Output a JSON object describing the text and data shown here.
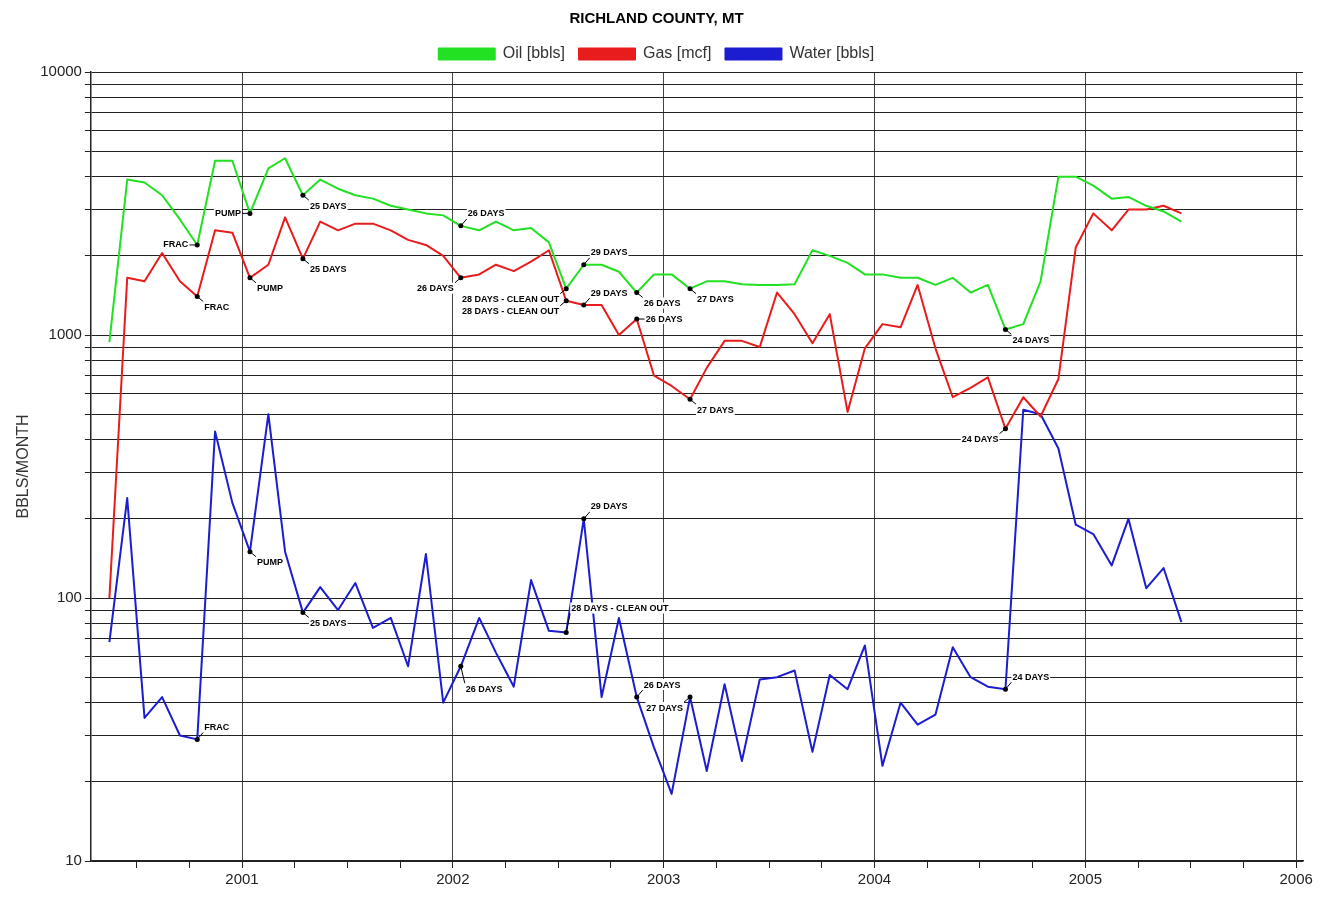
{
  "chart_data": {
    "type": "line",
    "title": "RICHLAND COUNTY, MT",
    "ylabel": "BBLS/MONTH",
    "x": [
      "2000-05-15",
      "2000-06-15",
      "2000-07-15",
      "2000-08-15",
      "2000-09-15",
      "2000-10-15",
      "2000-11-15",
      "2000-12-15",
      "2001-01-15",
      "2001-02-15",
      "2001-03-15",
      "2001-04-15",
      "2001-05-15",
      "2001-06-15",
      "2001-07-15",
      "2001-08-15",
      "2001-09-15",
      "2001-10-15",
      "2001-11-15",
      "2001-12-15",
      "2002-01-15",
      "2002-02-15",
      "2002-03-15",
      "2002-04-15",
      "2002-05-15",
      "2002-06-15",
      "2002-07-15",
      "2002-08-15",
      "2002-09-15",
      "2002-10-15",
      "2002-11-15",
      "2002-12-15",
      "2003-01-15",
      "2003-02-15",
      "2003-03-15",
      "2003-04-15",
      "2003-05-15",
      "2003-06-15",
      "2003-07-15",
      "2003-08-15",
      "2003-09-15",
      "2003-10-15",
      "2003-11-15",
      "2003-12-15",
      "2004-01-15",
      "2004-02-15",
      "2004-03-15",
      "2004-04-15",
      "2004-05-15",
      "2004-06-15",
      "2004-07-15",
      "2004-08-15",
      "2004-09-15",
      "2004-10-15",
      "2004-11-15",
      "2004-12-15",
      "2005-01-15",
      "2005-02-15",
      "2005-03-15",
      "2005-04-15",
      "2005-05-15",
      "2005-06-15"
    ],
    "series": [
      {
        "name": "Oil [bbls]",
        "color": "#22e022",
        "values": [
          940,
          3900,
          3800,
          3400,
          2750,
          2200,
          4600,
          4600,
          2900,
          4300,
          4700,
          3400,
          3900,
          3600,
          3400,
          3300,
          3100,
          3000,
          2900,
          2850,
          2600,
          2500,
          2700,
          2500,
          2550,
          2250,
          1500,
          1850,
          1850,
          1740,
          1450,
          1700,
          1700,
          1500,
          1600,
          1600,
          1560,
          1550,
          1550,
          1560,
          2100,
          2000,
          1880,
          1700,
          1700,
          1650,
          1650,
          1550,
          1650,
          1450,
          1550,
          1050,
          1100,
          1600,
          4000,
          4000,
          3700,
          3300,
          3350,
          3100,
          2950,
          2700
        ]
      },
      {
        "name": "Gas [mcf]",
        "color": "#e81c1c",
        "values": [
          100,
          1650,
          1600,
          2050,
          1600,
          1400,
          2500,
          2450,
          1650,
          1850,
          2800,
          1950,
          2700,
          2500,
          2650,
          2650,
          2500,
          2300,
          2200,
          2000,
          1650,
          1700,
          1850,
          1750,
          1900,
          2100,
          1350,
          1300,
          1300,
          1000,
          1150,
          700,
          640,
          570,
          750,
          950,
          950,
          900,
          1450,
          1200,
          930,
          1200,
          510,
          890,
          1100,
          1070,
          1550,
          890,
          580,
          630,
          690,
          440,
          580,
          490,
          680,
          2150,
          2900,
          2500,
          3000,
          3000,
          3100,
          2900
        ]
      },
      {
        "name": "Water [bbls]",
        "color": "#1c1cd0",
        "values": [
          68,
          240,
          35,
          42,
          30,
          29,
          430,
          230,
          150,
          500,
          150,
          88,
          110,
          90,
          114,
          77,
          84,
          55,
          147,
          40,
          55,
          84,
          62,
          46,
          117,
          75,
          74,
          200,
          42,
          84,
          42,
          27,
          18,
          42,
          22,
          47,
          24,
          49,
          50,
          53,
          26,
          51,
          45,
          66,
          23,
          40,
          33,
          36,
          65,
          50,
          46,
          45,
          520,
          500,
          370,
          190,
          175,
          133,
          200,
          109,
          130,
          81
        ]
      }
    ],
    "log": "y",
    "ylim": [
      10,
      10000
    ],
    "yticks": [
      10,
      {
        "value": 20,
        "label": null
      },
      {
        "value": 30,
        "label": null
      },
      {
        "value": 40,
        "label": null
      },
      {
        "value": 50,
        "label": null
      },
      {
        "value": 60,
        "label": null
      },
      {
        "value": 70,
        "label": null
      },
      {
        "value": 80,
        "label": null
      },
      {
        "value": 90,
        "label": null
      },
      100,
      {
        "value": 200,
        "label": null
      },
      {
        "value": 300,
        "label": null
      },
      {
        "value": 400,
        "label": null
      },
      {
        "value": 500,
        "label": null
      },
      {
        "value": 600,
        "label": null
      },
      {
        "value": 700,
        "label": null
      },
      {
        "value": 800,
        "label": null
      },
      {
        "value": 900,
        "label": null
      },
      1000,
      {
        "value": 2000,
        "label": null
      },
      {
        "value": 3000,
        "label": null
      },
      {
        "value": 4000,
        "label": null
      },
      {
        "value": 5000,
        "label": null
      },
      {
        "value": 6000,
        "label": null
      },
      {
        "value": 7000,
        "label": null
      },
      {
        "value": 8000,
        "label": null
      },
      {
        "value": 9000,
        "label": null
      },
      10000
    ],
    "xlim": [
      "2000-04-13",
      "2006-01-13"
    ],
    "xticks": [
      {
        "value": "2000-07",
        "label": null
      },
      {
        "value": "2000-10",
        "label": null
      },
      {
        "value": "2001",
        "label": "2001"
      },
      {
        "value": "2001-04",
        "label": null
      },
      {
        "value": "2001-07",
        "label": null
      },
      {
        "value": "2001-10",
        "label": null
      },
      {
        "value": "2002",
        "label": "2002"
      },
      {
        "value": "2002-04",
        "label": null
      },
      {
        "value": "2002-07",
        "label": null
      },
      {
        "value": "2002-10",
        "label": null
      },
      {
        "value": "2003",
        "label": "2003"
      },
      {
        "value": "2003-04",
        "label": null
      },
      {
        "value": "2003-07",
        "label": null
      },
      {
        "value": "2003-10",
        "label": null
      },
      {
        "value": "2004",
        "label": "2004"
      },
      {
        "value": "2004-04",
        "label": null
      },
      {
        "value": "2004-07",
        "label": null
      },
      {
        "value": "2004-10",
        "label": null
      },
      {
        "value": "2005",
        "label": "2005"
      },
      {
        "value": "2005-04",
        "label": null
      },
      {
        "value": "2005-07",
        "label": null
      },
      {
        "value": "2005-10",
        "label": null
      },
      {
        "value": "2006",
        "label": "2006"
      }
    ],
    "grid": true,
    "legend": "top",
    "annotations": [
      {
        "text": "FRAC",
        "x": "2000-10-15",
        "y": 2200
      },
      {
        "text": "PUMP",
        "x": "2001-01-15",
        "y": 2900
      },
      {
        "text": "25 DAYS",
        "x": "2001-04-15",
        "y": 3400
      },
      {
        "text": "26 DAYS",
        "x": "2002-01-15",
        "y": 2600
      },
      {
        "text": "28 DAYS - CLEAN OUT",
        "x": "2002-07-15",
        "y": 1500
      },
      {
        "text": "29 DAYS",
        "x": "2002-08-15",
        "y": 1850
      },
      {
        "text": "26 DAYS",
        "x": "2002-11-15",
        "y": 1450
      },
      {
        "text": "27 DAYS",
        "x": "2003-02-15",
        "y": 1500
      },
      {
        "text": "24 DAYS",
        "x": "2004-08-15",
        "y": 1050
      },
      {
        "text": "FRAC",
        "x": "2000-10-15",
        "y": 1400
      },
      {
        "text": "PUMP",
        "x": "2001-01-15",
        "y": 1650
      },
      {
        "text": "25 DAYS",
        "x": "2001-04-15",
        "y": 1950
      },
      {
        "text": "26 DAYS",
        "x": "2002-01-15",
        "y": 1650
      },
      {
        "text": "28 DAYS - CLEAN OUT",
        "x": "2002-07-15",
        "y": 1350
      },
      {
        "text": "29 DAYS",
        "x": "2002-08-15",
        "y": 1300
      },
      {
        "text": "26 DAYS",
        "x": "2002-11-15",
        "y": 1150
      },
      {
        "text": "27 DAYS",
        "x": "2003-02-15",
        "y": 570
      },
      {
        "text": "24 DAYS",
        "x": "2004-08-15",
        "y": 440
      },
      {
        "text": "FRAC",
        "x": "2000-10-15",
        "y": 29
      },
      {
        "text": "PUMP",
        "x": "2001-01-15",
        "y": 150
      },
      {
        "text": "25 DAYS",
        "x": "2001-04-15",
        "y": 88
      },
      {
        "text": "26 DAYS",
        "x": "2002-01-15",
        "y": 55
      },
      {
        "text": "28 DAYS - CLEAN OUT",
        "x": "2002-07-15",
        "y": 74
      },
      {
        "text": "29 DAYS",
        "x": "2002-08-15",
        "y": 200
      },
      {
        "text": "26 DAYS",
        "x": "2002-11-15",
        "y": 42
      },
      {
        "text": "27 DAYS",
        "x": "2003-02-15",
        "y": 42
      },
      {
        "text": "24 DAYS",
        "x": "2004-08-15",
        "y": 45
      }
    ]
  }
}
